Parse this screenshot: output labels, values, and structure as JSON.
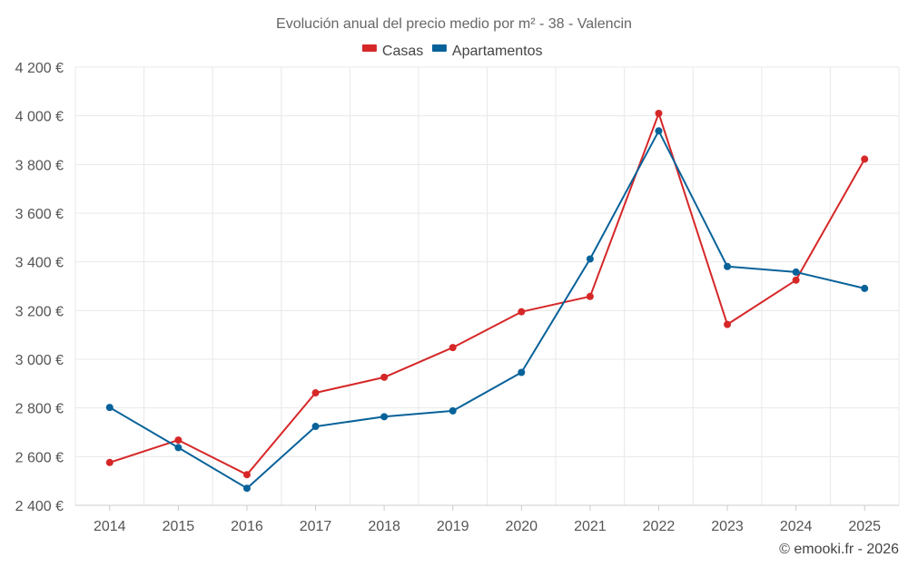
{
  "chart_data": {
    "type": "line",
    "title": "Evolución anual del precio medio por m² - 38 - Valencin",
    "categories": [
      "2014",
      "2015",
      "2016",
      "2017",
      "2018",
      "2019",
      "2020",
      "2021",
      "2022",
      "2023",
      "2024",
      "2025"
    ],
    "series": [
      {
        "name": "Casas",
        "color": "#d62728",
        "values": [
          2576,
          2668,
          2526,
          2862,
          2926,
          3048,
          3195,
          3258,
          4010,
          3143,
          3325,
          3822
        ]
      },
      {
        "name": "Apartamentos",
        "color": "#08629a",
        "values": [
          2802,
          2637,
          2470,
          2724,
          2764,
          2788,
          2946,
          3412,
          3938,
          3381,
          3358,
          3291
        ]
      }
    ],
    "ylim": [
      2400,
      4200
    ],
    "yticks": [
      2400,
      2600,
      2800,
      3000,
      3200,
      3400,
      3600,
      3800,
      4000,
      4200
    ],
    "ytick_labels": [
      "2 400 €",
      "2 600 €",
      "2 800 €",
      "3 000 €",
      "3 200 €",
      "3 400 €",
      "3 600 €",
      "3 800 €",
      "4 000 €",
      "4 200 €"
    ],
    "xlabel": "",
    "ylabel": "",
    "grid": true,
    "legend": "top-center"
  },
  "credit": "© emooki.fr - 2026"
}
